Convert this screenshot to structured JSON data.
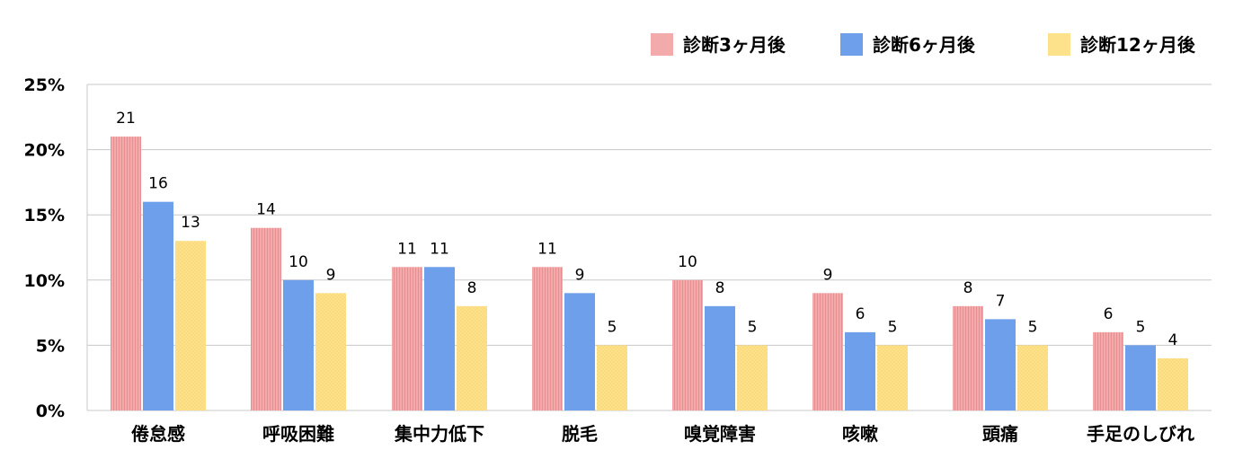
{
  "chart_data": {
    "type": "bar",
    "title": "",
    "xlabel": "",
    "ylabel": "",
    "categories": [
      "倦怠感",
      "呼吸困難",
      "集中力低下",
      "脱毛",
      "嗅覚障害",
      "咳嗽",
      "頭痛",
      "手足のしびれ"
    ],
    "series": [
      {
        "name": "診断3ヶ月後",
        "color": "#f2aaab",
        "pattern": "vertical-stripes",
        "values": [
          21,
          14,
          11,
          11,
          10,
          9,
          8,
          6
        ],
        "labels": [
          "21",
          "14",
          "11",
          "11",
          "10",
          "9",
          "8",
          "6"
        ]
      },
      {
        "name": "診断6ヶ月後",
        "color": "#6e9fea",
        "pattern": "solid",
        "values": [
          16,
          10,
          11,
          9,
          8,
          6,
          7,
          5
        ],
        "labels": [
          "16",
          "10",
          "11",
          "9",
          "8",
          "6",
          "7",
          "5"
        ]
      },
      {
        "name": "診断12ヶ月後",
        "color": "#fde28b",
        "pattern": "dots",
        "values": [
          13,
          9,
          8,
          5,
          5,
          5,
          5,
          4
        ],
        "labels": [
          "13",
          "9",
          "8",
          "5",
          "5",
          "5",
          "5",
          "4"
        ]
      }
    ],
    "ylim": [
      0,
      25
    ],
    "yticks": [
      0,
      5,
      10,
      15,
      20,
      25
    ],
    "ytick_labels": [
      "0%",
      "5%",
      "10%",
      "15%",
      "20%",
      "25%"
    ],
    "grid": true,
    "legend_position": "top-right",
    "axis_color": "#c8c8c8"
  }
}
